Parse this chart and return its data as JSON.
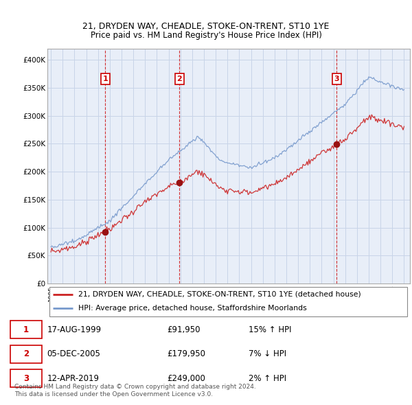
{
  "title": "21, DRYDEN WAY, CHEADLE, STOKE-ON-TRENT, ST10 1YE",
  "subtitle": "Price paid vs. HM Land Registry's House Price Index (HPI)",
  "ylim": [
    0,
    420000
  ],
  "yticks": [
    0,
    50000,
    100000,
    150000,
    200000,
    250000,
    300000,
    350000,
    400000
  ],
  "ytick_labels": [
    "£0",
    "£50K",
    "£100K",
    "£150K",
    "£200K",
    "£250K",
    "£300K",
    "£350K",
    "£400K"
  ],
  "sale_dates": [
    1999.62,
    2005.92,
    2019.28
  ],
  "sale_prices": [
    91950,
    179950,
    249000
  ],
  "sale_labels": [
    "1",
    "2",
    "3"
  ],
  "vline_color": "#cc0000",
  "red_color": "#cc2222",
  "blue_color": "#7799cc",
  "plot_bg_color": "#e8eef8",
  "legend_entries": [
    {
      "label": "21, DRYDEN WAY, CHEADLE, STOKE-ON-TRENT, ST10 1YE (detached house)",
      "color": "#cc2222"
    },
    {
      "label": "HPI: Average price, detached house, Staffordshire Moorlands",
      "color": "#7799cc"
    }
  ],
  "table_rows": [
    {
      "num": "1",
      "date": "17-AUG-1999",
      "price": "£91,950",
      "hpi": "15% ↑ HPI"
    },
    {
      "num": "2",
      "date": "05-DEC-2005",
      "price": "£179,950",
      "hpi": "7% ↓ HPI"
    },
    {
      "num": "3",
      "date": "12-APR-2019",
      "price": "£249,000",
      "hpi": "2% ↑ HPI"
    }
  ],
  "footer": "Contains HM Land Registry data © Crown copyright and database right 2024.\nThis data is licensed under the Open Government Licence v3.0.",
  "background_color": "#ffffff",
  "grid_color": "#c8d4e8"
}
